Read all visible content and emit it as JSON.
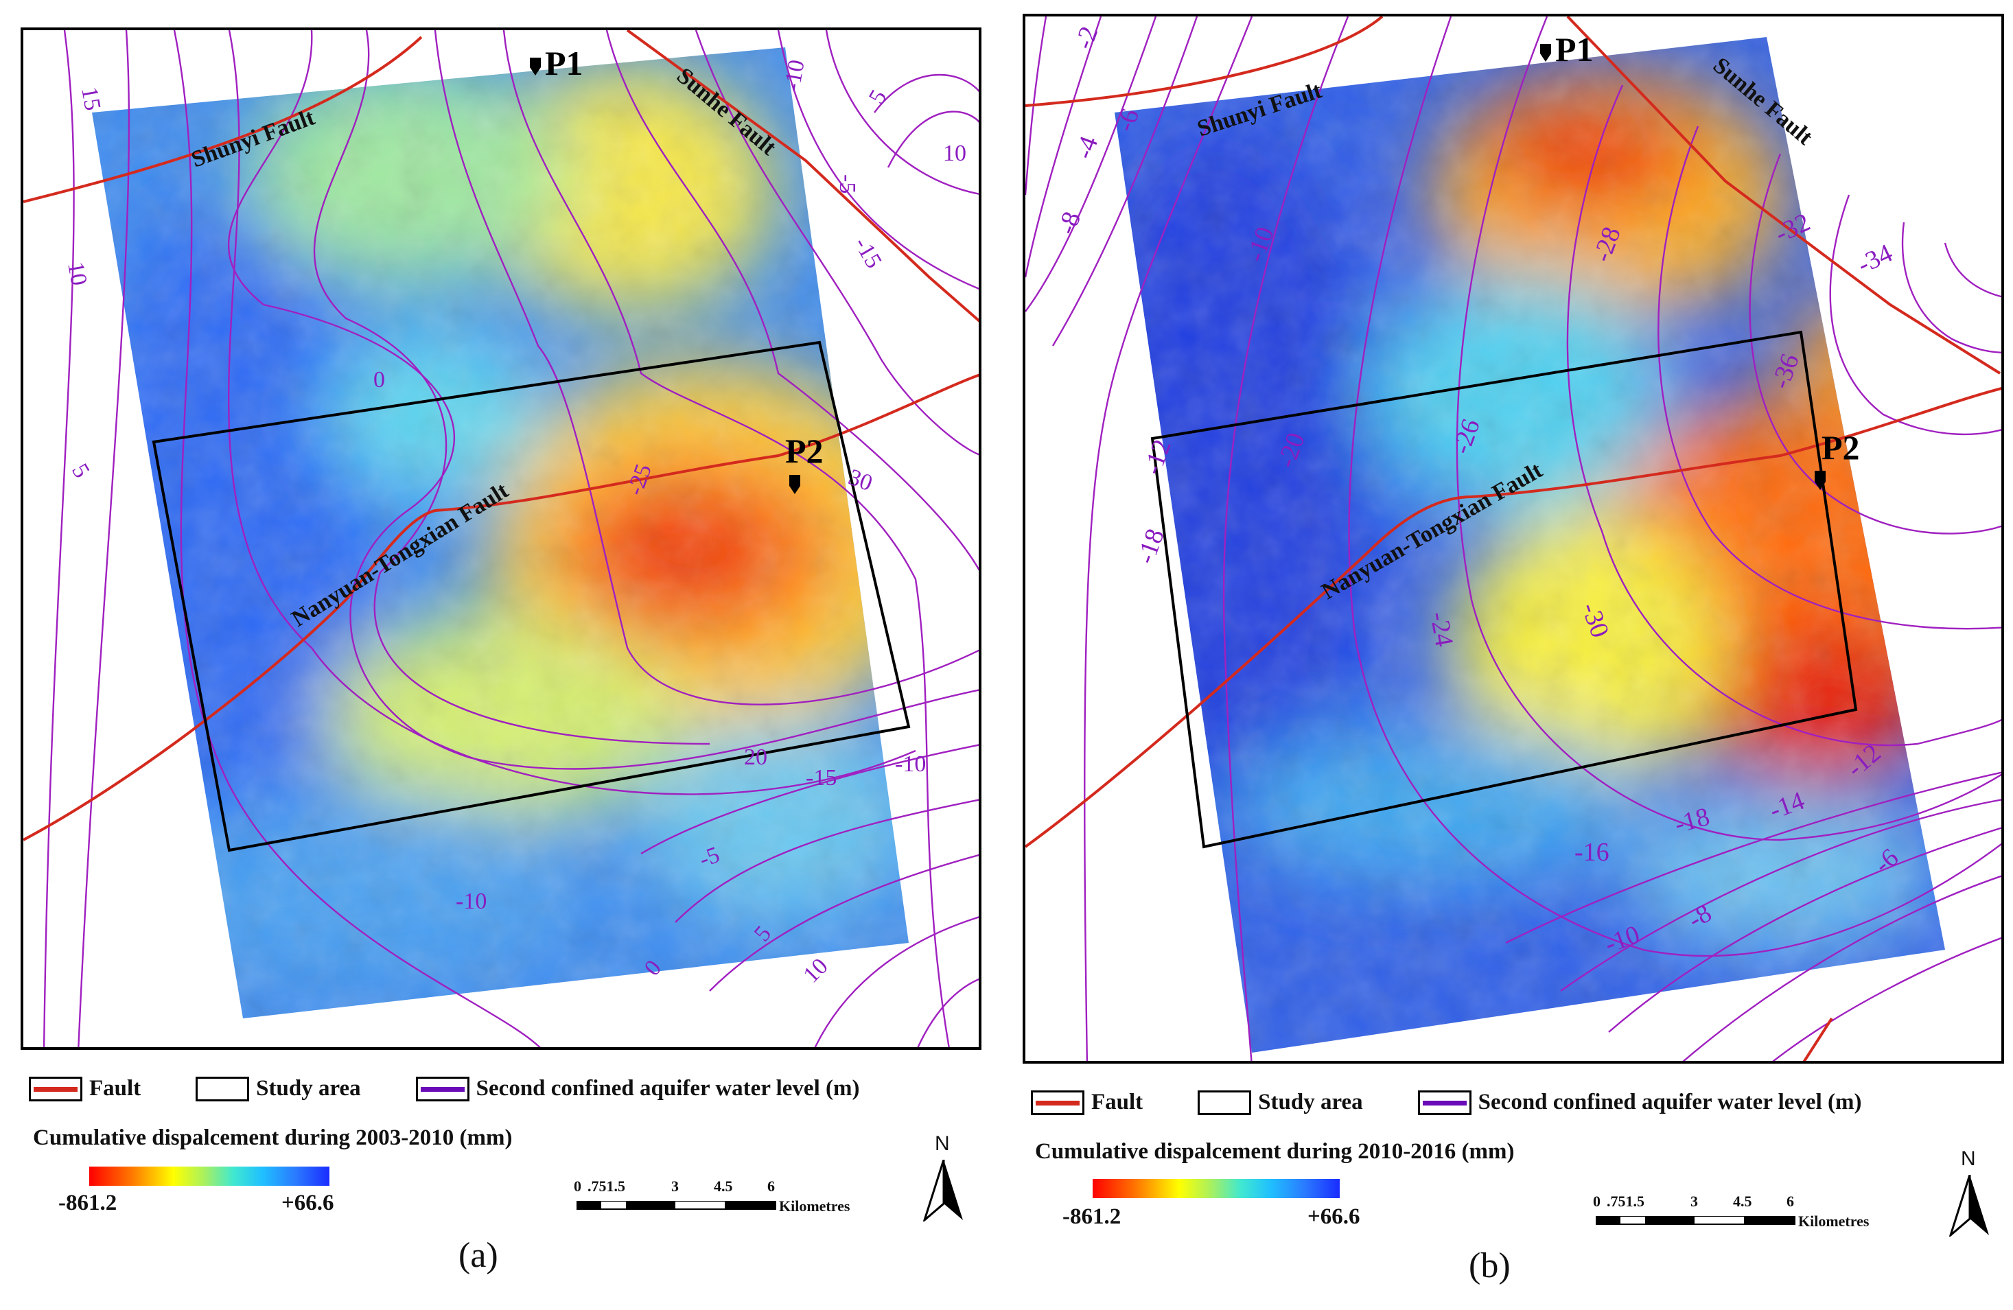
{
  "panels": [
    {
      "id": "a",
      "label": "(a)",
      "fault_labels": [
        "Shunyi Fault",
        "Sunhe Fault",
        "Nanyuan-Tongxian Fault"
      ],
      "points": [
        "P1",
        "P2"
      ],
      "contour_labels": [
        "15",
        "10",
        "5",
        "0",
        "-5",
        "-10",
        "-15",
        "-25",
        "30",
        "20",
        "-15",
        "-10",
        "-5",
        "0",
        "5",
        "10",
        "-10",
        "5",
        "10"
      ],
      "legend": {
        "fault": "Fault",
        "study_area": "Study area",
        "water_level": "Second confined aquifer water level (m)",
        "colorbar_title": "Cumulative dispalcement during 2003-2010 (mm)",
        "min": "-861.2",
        "max": "+66.6"
      },
      "scale": {
        "ticks": [
          "0",
          ".751.5",
          "3",
          "4.5",
          "6"
        ],
        "unit": "Kilometres"
      },
      "north": "N"
    },
    {
      "id": "b",
      "label": "(b)",
      "fault_labels": [
        "Shunyi Fault",
        "Sunhe Fault",
        "Nanyuan-Tongxian Fault"
      ],
      "points": [
        "P1",
        "P2"
      ],
      "contour_labels": [
        "-2",
        "-4",
        "-6",
        "-8",
        "-10",
        "-12",
        "-18",
        "-20",
        "-26",
        "-28",
        "-32",
        "-34",
        "-36",
        "-24",
        "-30",
        "-16",
        "-18",
        "-14",
        "-12",
        "-10",
        "-8",
        "-6"
      ],
      "legend": {
        "fault": "Fault",
        "study_area": "Study area",
        "water_level": "Second confined aquifer water level (m)",
        "colorbar_title": "Cumulative dispalcement during 2010-2016 (mm)",
        "min": "-861.2",
        "max": "+66.6"
      },
      "scale": {
        "ticks": [
          "0",
          ".751.5",
          "3",
          "4.5",
          "6"
        ],
        "unit": "Kilometres"
      },
      "north": "N"
    }
  ],
  "colors": {
    "fault": "#d42a1e",
    "study_area": "#000000",
    "contour": "#a020c0",
    "contour_legend": "#6a0ab8",
    "contour_label": "#8a1cc0"
  }
}
